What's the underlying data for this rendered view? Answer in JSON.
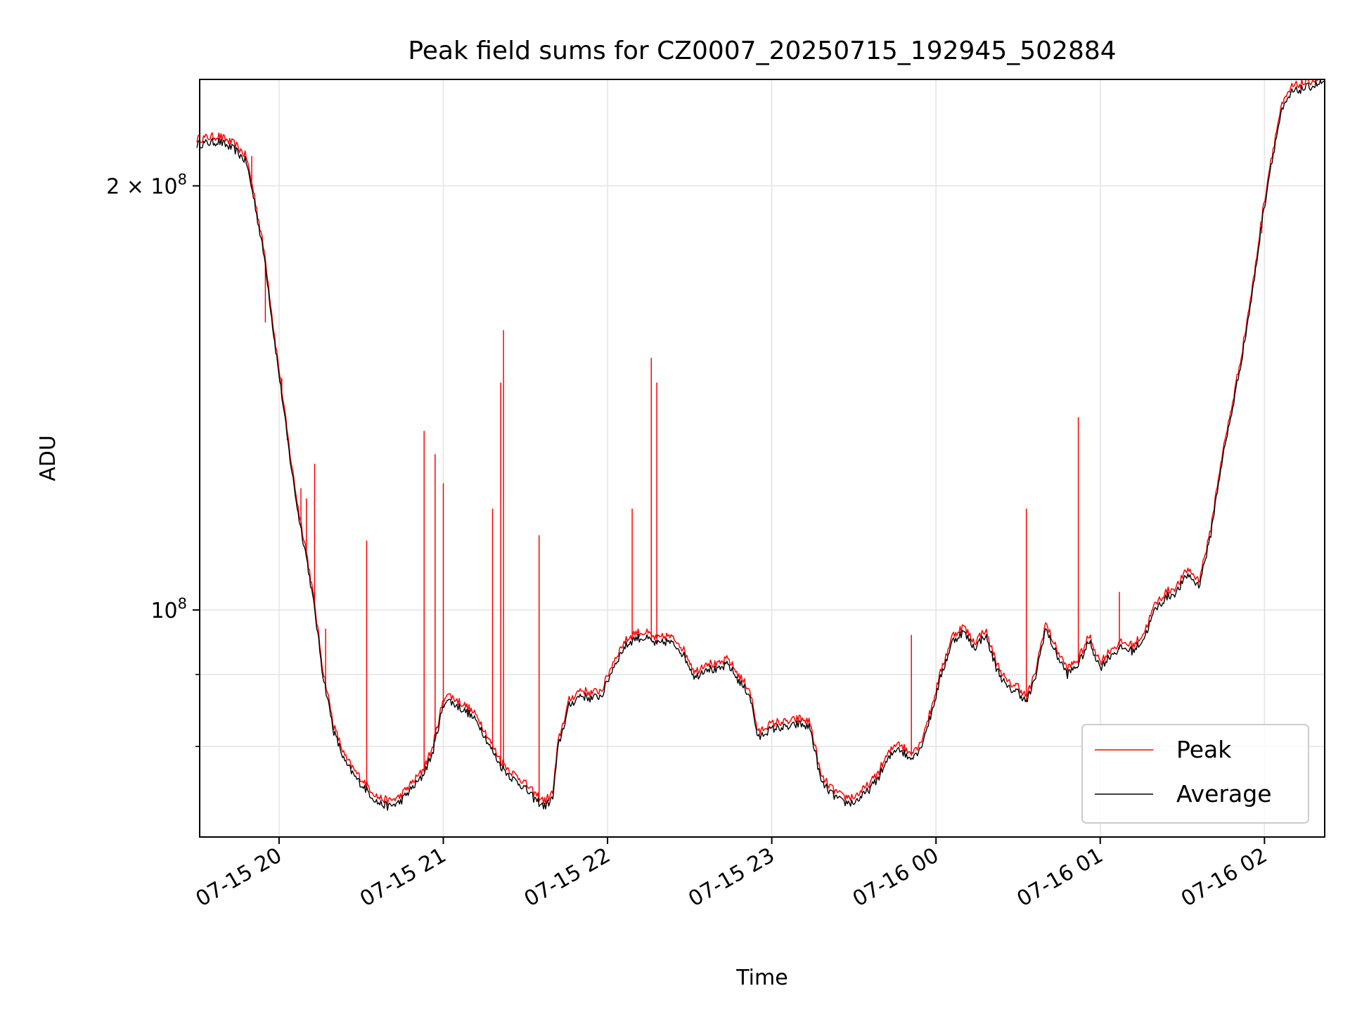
{
  "chart_data": {
    "type": "line",
    "title": "Peak field sums for CZ0007_20250715_192945_502884",
    "xlabel": "Time",
    "ylabel": "ADU",
    "y_scale": "log",
    "ylim": [
      69000000,
      238000000
    ],
    "xlim": [
      "07-15 19:31",
      "07-16 02:22"
    ],
    "grid": true,
    "legend_position": "lower right",
    "x_ticks": [
      "07-15 20",
      "07-15 21",
      "07-15 22",
      "07-15 23",
      "07-16 00",
      "07-16 01",
      "07-16 02"
    ],
    "y_ticks": [
      {
        "value": 100000000,
        "base": "10",
        "exp": "8"
      },
      {
        "value": 200000000,
        "prefix": "2 × ",
        "base": "10",
        "exp": "8"
      }
    ],
    "y_minor_ticks": [
      80000000,
      90000000
    ],
    "series": [
      {
        "name": "Peak",
        "color": "#ff0000"
      },
      {
        "name": "Average",
        "color": "#000000"
      }
    ],
    "average_points": [
      [
        "07-15 19:30",
        214000000
      ],
      [
        "07-15 19:38",
        215000000
      ],
      [
        "07-15 19:44",
        212000000
      ],
      [
        "07-15 19:48",
        208000000
      ],
      [
        "07-15 19:51",
        195000000
      ],
      [
        "07-15 19:55",
        176000000
      ],
      [
        "07-15 19:58",
        157000000
      ],
      [
        "07-15 20:01",
        142000000
      ],
      [
        "07-15 20:04",
        128000000
      ],
      [
        "07-15 20:07",
        117000000
      ],
      [
        "07-15 20:10",
        109000000
      ],
      [
        "07-15 20:13",
        100000000
      ],
      [
        "07-15 20:16",
        90000000
      ],
      [
        "07-15 20:20",
        82000000
      ],
      [
        "07-15 20:24",
        78000000
      ],
      [
        "07-15 20:28",
        76000000
      ],
      [
        "07-15 20:32",
        74500000
      ],
      [
        "07-15 20:36",
        73000000
      ],
      [
        "07-15 20:40",
        72500000
      ],
      [
        "07-15 20:44",
        73000000
      ],
      [
        "07-15 20:48",
        74500000
      ],
      [
        "07-15 20:52",
        76000000
      ],
      [
        "07-15 20:56",
        79000000
      ],
      [
        "07-15 20:59",
        84000000
      ],
      [
        "07-15 21:01",
        86500000
      ],
      [
        "07-15 21:05",
        85500000
      ],
      [
        "07-15 21:09",
        84500000
      ],
      [
        "07-15 21:13",
        83000000
      ],
      [
        "07-15 21:17",
        80000000
      ],
      [
        "07-15 21:21",
        77500000
      ],
      [
        "07-15 21:25",
        76000000
      ],
      [
        "07-15 21:29",
        75000000
      ],
      [
        "07-15 21:33",
        73500000
      ],
      [
        "07-15 21:37",
        72500000
      ],
      [
        "07-15 21:40",
        73500000
      ],
      [
        "07-15 21:42",
        80000000
      ],
      [
        "07-15 21:46",
        85500000
      ],
      [
        "07-15 21:50",
        87000000
      ],
      [
        "07-15 21:54",
        86500000
      ],
      [
        "07-15 21:58",
        87000000
      ],
      [
        "07-15 22:02",
        91000000
      ],
      [
        "07-15 22:06",
        94000000
      ],
      [
        "07-15 22:10",
        95500000
      ],
      [
        "07-15 22:14",
        95500000
      ],
      [
        "07-15 22:18",
        94500000
      ],
      [
        "07-15 22:22",
        95000000
      ],
      [
        "07-15 22:26",
        94000000
      ],
      [
        "07-15 22:29",
        92000000
      ],
      [
        "07-15 22:32",
        89500000
      ],
      [
        "07-15 22:36",
        91000000
      ],
      [
        "07-15 22:40",
        90500000
      ],
      [
        "07-15 22:44",
        91500000
      ],
      [
        "07-15 22:48",
        89000000
      ],
      [
        "07-15 22:52",
        87000000
      ],
      [
        "07-15 22:55",
        81000000
      ],
      [
        "07-15 22:58",
        82000000
      ],
      [
        "07-15 23:02",
        82500000
      ],
      [
        "07-15 23:06",
        82500000
      ],
      [
        "07-15 23:10",
        83000000
      ],
      [
        "07-15 23:14",
        82500000
      ],
      [
        "07-15 23:16",
        79000000
      ],
      [
        "07-15 23:18",
        75500000
      ],
      [
        "07-15 23:22",
        74000000
      ],
      [
        "07-15 23:26",
        73000000
      ],
      [
        "07-15 23:30",
        73000000
      ],
      [
        "07-15 23:34",
        74000000
      ],
      [
        "07-15 23:38",
        75500000
      ],
      [
        "07-15 23:42",
        78000000
      ],
      [
        "07-15 23:46",
        80000000
      ],
      [
        "07-15 23:50",
        78500000
      ],
      [
        "07-15 23:54",
        79500000
      ],
      [
        "07-15 23:58",
        84000000
      ],
      [
        "07-16 00:02",
        90000000
      ],
      [
        "07-16 00:06",
        95000000
      ],
      [
        "07-16 00:10",
        96500000
      ],
      [
        "07-16 00:14",
        94000000
      ],
      [
        "07-16 00:18",
        96000000
      ],
      [
        "07-16 00:22",
        91000000
      ],
      [
        "07-16 00:26",
        88000000
      ],
      [
        "07-16 00:30",
        87500000
      ],
      [
        "07-16 00:33",
        86000000
      ],
      [
        "07-16 00:36",
        89000000
      ],
      [
        "07-16 00:40",
        97000000
      ],
      [
        "07-16 00:44",
        93000000
      ],
      [
        "07-16 00:48",
        90000000
      ],
      [
        "07-16 00:52",
        91500000
      ],
      [
        "07-16 00:56",
        95000000
      ],
      [
        "07-16 01:00",
        91000000
      ],
      [
        "07-16 01:04",
        93000000
      ],
      [
        "07-16 01:08",
        94000000
      ],
      [
        "07-16 01:12",
        93500000
      ],
      [
        "07-16 01:16",
        95500000
      ],
      [
        "07-16 01:20",
        100000000
      ],
      [
        "07-16 01:24",
        102000000
      ],
      [
        "07-16 01:28",
        103000000
      ],
      [
        "07-16 01:32",
        106000000
      ],
      [
        "07-16 01:36",
        104000000
      ],
      [
        "07-16 01:40",
        112000000
      ],
      [
        "07-16 01:44",
        126000000
      ],
      [
        "07-16 01:48",
        138000000
      ],
      [
        "07-16 01:52",
        152000000
      ],
      [
        "07-16 01:56",
        170000000
      ],
      [
        "07-16 01:59",
        188000000
      ],
      [
        "07-16 02:02",
        205000000
      ],
      [
        "07-16 02:06",
        225000000
      ],
      [
        "07-16 02:10",
        233000000
      ],
      [
        "07-16 02:16",
        235000000
      ],
      [
        "07-16 02:22",
        237000000
      ]
    ],
    "peak_spikes": [
      [
        "07-15 19:50",
        210000000
      ],
      [
        "07-15 19:55",
        160000000
      ],
      [
        "07-15 20:01",
        146000000
      ],
      [
        "07-15 20:03",
        132000000
      ],
      [
        "07-15 20:08",
        122000000
      ],
      [
        "07-15 20:10",
        120000000
      ],
      [
        "07-15 20:13",
        127000000
      ],
      [
        "07-15 20:17",
        97000000
      ],
      [
        "07-15 20:32",
        112000000
      ],
      [
        "07-15 20:53",
        134000000
      ],
      [
        "07-15 20:57",
        129000000
      ],
      [
        "07-15 21:00",
        123000000
      ],
      [
        "07-15 21:18",
        118000000
      ],
      [
        "07-15 21:21",
        145000000
      ],
      [
        "07-15 21:22",
        158000000
      ],
      [
        "07-15 21:35",
        113000000
      ],
      [
        "07-15 22:09",
        118000000
      ],
      [
        "07-15 22:16",
        151000000
      ],
      [
        "07-15 22:18",
        145000000
      ],
      [
        "07-15 23:51",
        96000000
      ],
      [
        "07-16 00:33",
        118000000
      ],
      [
        "07-16 00:52",
        137000000
      ],
      [
        "07-16 01:07",
        103000000
      ],
      [
        "07-16 01:59",
        185000000
      ]
    ]
  }
}
